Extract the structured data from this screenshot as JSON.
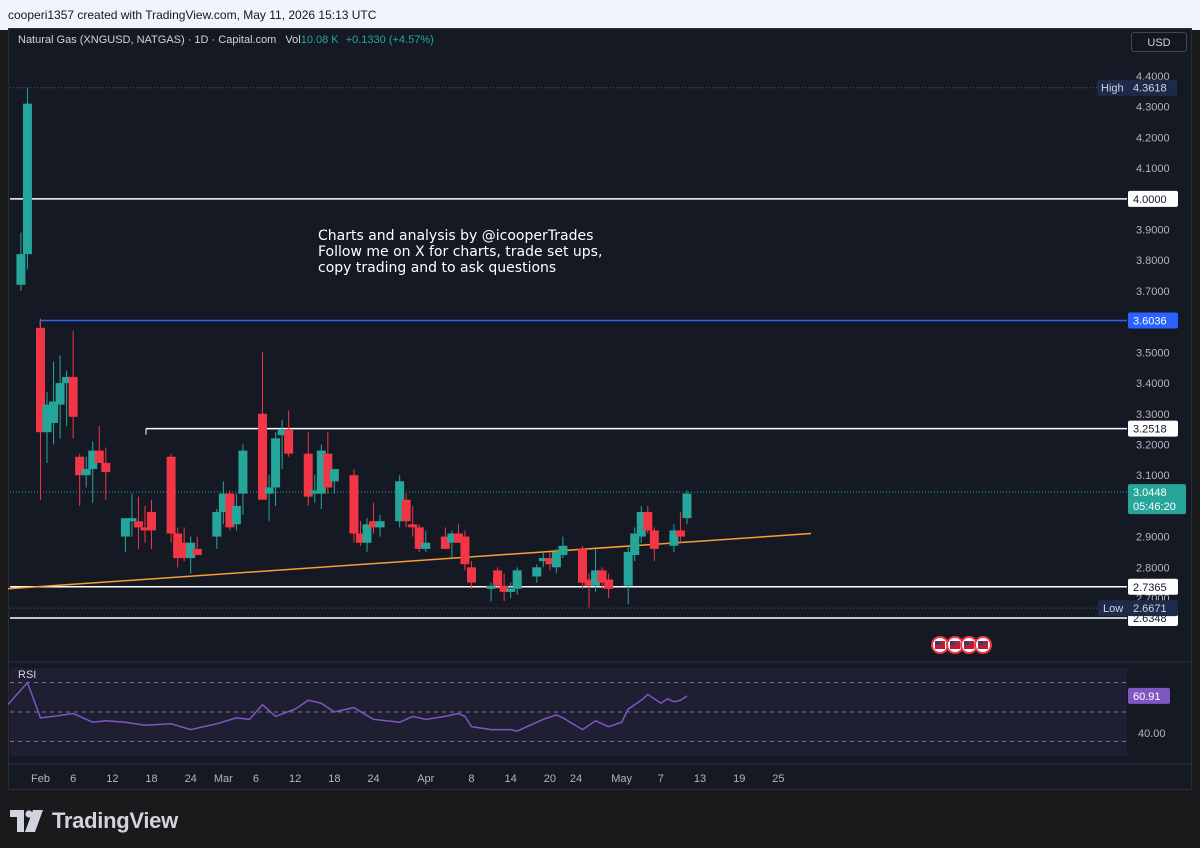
{
  "header": {
    "created_text": "cooperi1357 created with TradingView.com, May 11, 2026 15:13 UTC"
  },
  "legend": {
    "symbol": "Natural Gas (XNGUSD, NATGAS) · 1D · Capital.com",
    "vol_label": "Vol",
    "vol_value": "10.08 K",
    "change": "+0.1330 (+4.57%)"
  },
  "currency_button": "USD",
  "annotation": {
    "line1": "Charts and analysis by @icooperTrades",
    "line2": "Follow me on X for charts, trade set ups,",
    "line3": "copy trading and to ask questions"
  },
  "colors": {
    "up": "#26a69a",
    "down": "#f23645",
    "background": "#151924",
    "trendline": "#f7a035",
    "blue_level": "#2962ff",
    "rsi": "#7e57c2"
  },
  "chart_data": {
    "type": "candlestick",
    "ylim": [
      2.6,
      4.44
    ],
    "y_ticks": [
      "4.4000",
      "4.3000",
      "4.2000",
      "4.1000",
      "4.0000",
      "3.9000",
      "3.8000",
      "3.7000",
      "3.6000",
      "3.5000",
      "3.4000",
      "3.3000",
      "3.2000",
      "3.1000",
      "3.0000",
      "2.9000",
      "2.8000",
      "2.7000"
    ],
    "x_ticks": [
      {
        "day": 0,
        "label": "Feb"
      },
      {
        "day": 5,
        "label": "6"
      },
      {
        "day": 11,
        "label": "12"
      },
      {
        "day": 17,
        "label": "18"
      },
      {
        "day": 23,
        "label": "24"
      },
      {
        "day": 28,
        "label": "Mar"
      },
      {
        "day": 33,
        "label": "6"
      },
      {
        "day": 39,
        "label": "12"
      },
      {
        "day": 45,
        "label": "18"
      },
      {
        "day": 51,
        "label": "24"
      },
      {
        "day": 59,
        "label": "Apr"
      },
      {
        "day": 66,
        "label": "8"
      },
      {
        "day": 72,
        "label": "14"
      },
      {
        "day": 78,
        "label": "20"
      },
      {
        "day": 82,
        "label": "24"
      },
      {
        "day": 89,
        "label": "May"
      },
      {
        "day": 95,
        "label": "7"
      },
      {
        "day": 101,
        "label": "13"
      },
      {
        "day": 107,
        "label": "19"
      },
      {
        "day": 113,
        "label": "25"
      }
    ],
    "candles": [
      {
        "day": -3,
        "o": 3.72,
        "h": 3.89,
        "l": 3.7,
        "c": 3.82
      },
      {
        "day": -2,
        "o": 3.82,
        "h": 4.36,
        "l": 3.77,
        "c": 4.31
      },
      {
        "day": 0,
        "o": 3.58,
        "h": 3.61,
        "l": 3.02,
        "c": 3.24
      },
      {
        "day": 1,
        "o": 3.24,
        "h": 3.37,
        "l": 3.14,
        "c": 3.33
      },
      {
        "day": 2,
        "o": 3.27,
        "h": 3.47,
        "l": 3.2,
        "c": 3.34
      },
      {
        "day": 3,
        "o": 3.33,
        "h": 3.49,
        "l": 3.22,
        "c": 3.4
      },
      {
        "day": 4,
        "o": 3.4,
        "h": 3.44,
        "l": 3.26,
        "c": 3.42
      },
      {
        "day": 5,
        "o": 3.42,
        "h": 3.57,
        "l": 3.22,
        "c": 3.29
      },
      {
        "day": 6,
        "o": 3.16,
        "h": 3.17,
        "l": 3.0,
        "c": 3.1
      },
      {
        "day": 7,
        "o": 3.1,
        "h": 3.16,
        "l": 3.06,
        "c": 3.12
      },
      {
        "day": 8,
        "o": 3.12,
        "h": 3.21,
        "l": 3.01,
        "c": 3.18
      },
      {
        "day": 9,
        "o": 3.18,
        "h": 3.26,
        "l": 3.14,
        "c": 3.14
      },
      {
        "day": 10,
        "o": 3.14,
        "h": 3.19,
        "l": 3.02,
        "c": 3.11
      },
      {
        "day": 13,
        "o": 2.9,
        "h": 2.96,
        "l": 2.85,
        "c": 2.96
      },
      {
        "day": 14,
        "o": 2.95,
        "h": 3.04,
        "l": 2.9,
        "c": 2.96
      },
      {
        "day": 15,
        "o": 2.95,
        "h": 3.03,
        "l": 2.86,
        "c": 2.93
      },
      {
        "day": 16,
        "o": 2.93,
        "h": 3.0,
        "l": 2.88,
        "c": 2.92
      },
      {
        "day": 17,
        "o": 2.98,
        "h": 3.02,
        "l": 2.86,
        "c": 2.92
      },
      {
        "day": 20,
        "o": 3.16,
        "h": 3.17,
        "l": 2.88,
        "c": 2.91
      },
      {
        "day": 21,
        "o": 2.91,
        "h": 2.93,
        "l": 2.8,
        "c": 2.83
      },
      {
        "day": 22,
        "o": 2.88,
        "h": 2.93,
        "l": 2.82,
        "c": 2.83
      },
      {
        "day": 23,
        "o": 2.83,
        "h": 2.9,
        "l": 2.78,
        "c": 2.88
      },
      {
        "day": 24,
        "o": 2.86,
        "h": 2.9,
        "l": 2.84,
        "c": 2.84
      },
      {
        "day": 27,
        "o": 2.9,
        "h": 2.99,
        "l": 2.86,
        "c": 2.98
      },
      {
        "day": 28,
        "o": 2.98,
        "h": 3.08,
        "l": 2.94,
        "c": 3.04
      },
      {
        "day": 29,
        "o": 3.04,
        "h": 3.05,
        "l": 2.92,
        "c": 2.93
      },
      {
        "day": 30,
        "o": 2.94,
        "h": 3.04,
        "l": 2.92,
        "c": 3.0
      },
      {
        "day": 31,
        "o": 3.04,
        "h": 3.2,
        "l": 2.97,
        "c": 3.18
      },
      {
        "day": 34,
        "o": 3.3,
        "h": 3.5,
        "l": 3.02,
        "c": 3.02
      },
      {
        "day": 35,
        "o": 3.04,
        "h": 3.1,
        "l": 2.95,
        "c": 3.06
      },
      {
        "day": 36,
        "o": 3.06,
        "h": 3.24,
        "l": 3.0,
        "c": 3.22
      },
      {
        "day": 37,
        "o": 3.23,
        "h": 3.28,
        "l": 3.12,
        "c": 3.25
      },
      {
        "day": 38,
        "o": 3.25,
        "h": 3.31,
        "l": 3.16,
        "c": 3.17
      },
      {
        "day": 41,
        "o": 3.17,
        "h": 3.24,
        "l": 3.0,
        "c": 3.03
      },
      {
        "day": 42,
        "o": 3.04,
        "h": 3.1,
        "l": 3.01,
        "c": 3.05
      },
      {
        "day": 43,
        "o": 3.04,
        "h": 3.2,
        "l": 2.99,
        "c": 3.18
      },
      {
        "day": 44,
        "o": 3.17,
        "h": 3.24,
        "l": 3.04,
        "c": 3.06
      },
      {
        "day": 45,
        "o": 3.08,
        "h": 3.12,
        "l": 3.04,
        "c": 3.12
      },
      {
        "day": 48,
        "o": 3.1,
        "h": 3.12,
        "l": 2.88,
        "c": 2.91
      },
      {
        "day": 49,
        "o": 2.91,
        "h": 2.95,
        "l": 2.87,
        "c": 2.88
      },
      {
        "day": 50,
        "o": 2.88,
        "h": 2.96,
        "l": 2.85,
        "c": 2.94
      },
      {
        "day": 51,
        "o": 2.95,
        "h": 3.01,
        "l": 2.91,
        "c": 2.93
      },
      {
        "day": 52,
        "o": 2.93,
        "h": 2.97,
        "l": 2.9,
        "c": 2.95
      },
      {
        "day": 55,
        "o": 2.95,
        "h": 3.1,
        "l": 2.93,
        "c": 3.08
      },
      {
        "day": 56,
        "o": 3.02,
        "h": 3.04,
        "l": 2.93,
        "c": 2.95
      },
      {
        "day": 57,
        "o": 2.94,
        "h": 3.0,
        "l": 2.9,
        "c": 2.93
      },
      {
        "day": 58,
        "o": 2.93,
        "h": 2.94,
        "l": 2.85,
        "c": 2.86
      },
      {
        "day": 59,
        "o": 2.86,
        "h": 2.92,
        "l": 2.85,
        "c": 2.88
      },
      {
        "day": 62,
        "o": 2.9,
        "h": 2.93,
        "l": 2.86,
        "c": 2.86
      },
      {
        "day": 63,
        "o": 2.88,
        "h": 2.92,
        "l": 2.83,
        "c": 2.91
      },
      {
        "day": 64,
        "o": 2.91,
        "h": 2.94,
        "l": 2.88,
        "c": 2.88
      },
      {
        "day": 65,
        "o": 2.9,
        "h": 2.92,
        "l": 2.79,
        "c": 2.81
      },
      {
        "day": 66,
        "o": 2.8,
        "h": 2.82,
        "l": 2.73,
        "c": 2.75
      },
      {
        "day": 69,
        "o": 2.73,
        "h": 2.75,
        "l": 2.69,
        "c": 2.74
      },
      {
        "day": 70,
        "o": 2.79,
        "h": 2.8,
        "l": 2.73,
        "c": 2.74
      },
      {
        "day": 71,
        "o": 2.74,
        "h": 2.78,
        "l": 2.69,
        "c": 2.72
      },
      {
        "day": 72,
        "o": 2.72,
        "h": 2.75,
        "l": 2.7,
        "c": 2.73
      },
      {
        "day": 73,
        "o": 2.73,
        "h": 2.8,
        "l": 2.71,
        "c": 2.79
      },
      {
        "day": 76,
        "o": 2.77,
        "h": 2.81,
        "l": 2.75,
        "c": 2.8
      },
      {
        "day": 77,
        "o": 2.82,
        "h": 2.85,
        "l": 2.8,
        "c": 2.83
      },
      {
        "day": 78,
        "o": 2.83,
        "h": 2.85,
        "l": 2.79,
        "c": 2.81
      },
      {
        "day": 79,
        "o": 2.8,
        "h": 2.86,
        "l": 2.78,
        "c": 2.85
      },
      {
        "day": 80,
        "o": 2.84,
        "h": 2.9,
        "l": 2.83,
        "c": 2.87
      },
      {
        "day": 83,
        "o": 2.86,
        "h": 2.87,
        "l": 2.73,
        "c": 2.75
      },
      {
        "day": 84,
        "o": 2.76,
        "h": 2.78,
        "l": 2.67,
        "c": 2.74
      },
      {
        "day": 85,
        "o": 2.74,
        "h": 2.86,
        "l": 2.72,
        "c": 2.79
      },
      {
        "day": 86,
        "o": 2.79,
        "h": 2.8,
        "l": 2.73,
        "c": 2.75
      },
      {
        "day": 87,
        "o": 2.76,
        "h": 2.78,
        "l": 2.7,
        "c": 2.73
      },
      {
        "day": 90,
        "o": 2.74,
        "h": 2.87,
        "l": 2.68,
        "c": 2.85
      },
      {
        "day": 91,
        "o": 2.84,
        "h": 2.93,
        "l": 2.82,
        "c": 2.91
      },
      {
        "day": 92,
        "o": 2.9,
        "h": 3.0,
        "l": 2.88,
        "c": 2.98
      },
      {
        "day": 93,
        "o": 2.98,
        "h": 3.0,
        "l": 2.91,
        "c": 2.92
      },
      {
        "day": 94,
        "o": 2.92,
        "h": 2.93,
        "l": 2.82,
        "c": 2.86
      },
      {
        "day": 97,
        "o": 2.87,
        "h": 2.94,
        "l": 2.85,
        "c": 2.92
      },
      {
        "day": 98,
        "o": 2.92,
        "h": 2.98,
        "l": 2.88,
        "c": 2.9
      },
      {
        "day": 99,
        "o": 2.96,
        "h": 3.05,
        "l": 2.94,
        "c": 3.04
      }
    ],
    "horizontal_levels": [
      {
        "value": 4.0,
        "label": "4.0000",
        "color": "#ffffff"
      },
      {
        "value": 3.6036,
        "label": "3.6036",
        "color": "#2962ff"
      },
      {
        "value": 3.2518,
        "label": "3.2518",
        "color": "#ffffff"
      },
      {
        "value": 2.7365,
        "label": "2.7365",
        "color": "#ffffff"
      },
      {
        "value": 2.6348,
        "label": "2.6348",
        "color": "#ffffff"
      }
    ],
    "high": {
      "label": "High",
      "value": 4.3618,
      "text": "4.3618"
    },
    "low": {
      "label": "Low",
      "value": 2.6671,
      "text": "2.6671"
    },
    "last_price": {
      "value": 3.0448,
      "text": "3.0448",
      "countdown": "05:46:20"
    },
    "trendline": {
      "start": {
        "day": -5,
        "value": 2.73
      },
      "end": {
        "day": 118,
        "value": 2.91
      }
    },
    "rsi": {
      "label": "RSI",
      "value_text": "60.91",
      "level_text": "40.00",
      "ylim": [
        20,
        80
      ],
      "bands": [
        70,
        50,
        30
      ],
      "points": [
        [
          -5,
          55
        ],
        [
          -2,
          70
        ],
        [
          0,
          46
        ],
        [
          2,
          47
        ],
        [
          5,
          49
        ],
        [
          7,
          45
        ],
        [
          8,
          43
        ],
        [
          10,
          44
        ],
        [
          13,
          43
        ],
        [
          16,
          41
        ],
        [
          20,
          42
        ],
        [
          23,
          38
        ],
        [
          27,
          42
        ],
        [
          30,
          46
        ],
        [
          32,
          45
        ],
        [
          34,
          55
        ],
        [
          36,
          47
        ],
        [
          39,
          52
        ],
        [
          41,
          58
        ],
        [
          43,
          56
        ],
        [
          45,
          50
        ],
        [
          48,
          53
        ],
        [
          51,
          45
        ],
        [
          55,
          43
        ],
        [
          57,
          47
        ],
        [
          59,
          45
        ],
        [
          62,
          47
        ],
        [
          64,
          49
        ],
        [
          65,
          47
        ],
        [
          66,
          40
        ],
        [
          69,
          38
        ],
        [
          72,
          38
        ],
        [
          73,
          37
        ],
        [
          75,
          41
        ],
        [
          77,
          45
        ],
        [
          79,
          48
        ],
        [
          80,
          46
        ],
        [
          83,
          38
        ],
        [
          85,
          44
        ],
        [
          87,
          40
        ],
        [
          89,
          43
        ],
        [
          90,
          52
        ],
        [
          92,
          58
        ],
        [
          93,
          62
        ],
        [
          95,
          56
        ],
        [
          96,
          59
        ],
        [
          97,
          57
        ],
        [
          98,
          58
        ],
        [
          99,
          61
        ]
      ]
    }
  }
}
